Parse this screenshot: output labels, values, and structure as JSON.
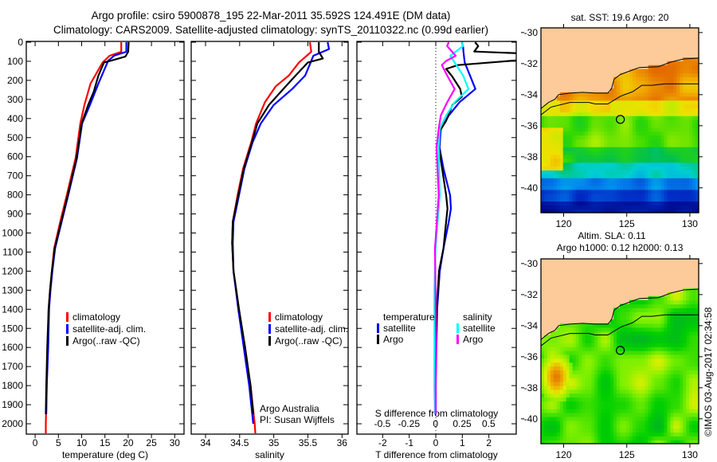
{
  "header": {
    "line1": "Argo profile: csiro 5900878_195 22-Mar-2011 35.592S 124.491E (DM data)",
    "line2": "Climatology: CARS2009. Satellite-adjusted climatology: synTS_20110322.nc (0.99d earlier)"
  },
  "footer_stamp": "©IMOS 03-Aug-2017 02:34:58",
  "colors": {
    "clim": "#ff0000",
    "sat": "#0000ff",
    "argo": "#000000",
    "s_sat": "#00ffff",
    "s_argo": "#ff00ff",
    "land": "#fdca9a"
  },
  "chart_data": [
    {
      "type": "line",
      "id": "temperature",
      "xlabel": "temperature (deg C)",
      "ylabel": "",
      "xlim": [
        -1.9,
        32
      ],
      "ylim": [
        2065,
        -10
      ],
      "xticks": [
        "0",
        "5",
        "10",
        "15",
        "20",
        "25",
        "30"
      ],
      "xtick_values": [
        0,
        5,
        10,
        15,
        20,
        25,
        30
      ],
      "yticks": [
        "0",
        "100",
        "200",
        "300",
        "400",
        "500",
        "600",
        "700",
        "800",
        "900",
        "1000",
        "1100",
        "1200",
        "1300",
        "1400",
        "1500",
        "1600",
        "1700",
        "1800",
        "1900",
        "2000"
      ],
      "legend": {
        "placement": "middle-center",
        "entries": [
          "climatology",
          "satellite-adj. clim.",
          "Argo(..raw -QC)"
        ]
      },
      "series": [
        {
          "name": "climatology",
          "color_key": "clim",
          "points": [
            [
              0,
              18.5
            ],
            [
              50,
              18.5
            ],
            [
              71,
              16.0
            ],
            [
              106,
              14.5
            ],
            [
              217,
              11.9
            ],
            [
              328,
              10.6
            ],
            [
              426,
              9.7
            ],
            [
              607,
              8.7
            ],
            [
              802,
              6.8
            ],
            [
              941,
              5.4
            ],
            [
              1080,
              4.1
            ],
            [
              1200,
              3.6
            ],
            [
              1300,
              3.2
            ],
            [
              1400,
              2.9
            ],
            [
              1600,
              2.7
            ],
            [
              1800,
              2.5
            ],
            [
              2000,
              2.3
            ],
            [
              2050,
              2.3
            ]
          ]
        },
        {
          "name": "satellite-adj. clim.",
          "color_key": "sat",
          "points": [
            [
              0,
              19.6
            ],
            [
              50,
              19.6
            ],
            [
              70,
              17.0
            ],
            [
              97,
              15.7
            ],
            [
              217,
              13.6
            ],
            [
              328,
              11.8
            ],
            [
              426,
              10.1
            ],
            [
              607,
              9.0
            ],
            [
              802,
              7.1
            ],
            [
              941,
              5.7
            ],
            [
              1080,
              4.3
            ],
            [
              1200,
              3.7
            ],
            [
              1300,
              3.3
            ],
            [
              1400,
              3.0
            ],
            [
              1600,
              2.8
            ],
            [
              1800,
              2.5
            ],
            [
              1950,
              2.4
            ]
          ]
        },
        {
          "name": "Argo(..raw -QC)",
          "color_key": "argo",
          "points": [
            [
              0,
              20.1
            ],
            [
              50,
              20.0
            ],
            [
              75,
              19.4
            ],
            [
              95,
              16.5
            ],
            [
              106,
              14.8
            ],
            [
              175,
              13.6
            ],
            [
              259,
              12.6
            ],
            [
              328,
              11.4
            ],
            [
              426,
              10.0
            ],
            [
              607,
              8.9
            ],
            [
              802,
              7.0
            ],
            [
              941,
              5.6
            ],
            [
              1080,
              4.2
            ],
            [
              1200,
              3.6
            ],
            [
              1300,
              3.2
            ],
            [
              1400,
              2.9
            ],
            [
              1600,
              2.6
            ],
            [
              1800,
              2.4
            ],
            [
              1950,
              2.3
            ]
          ]
        }
      ]
    },
    {
      "type": "line",
      "id": "salinity",
      "xlabel": "salinity",
      "xlim": [
        33.79,
        36.09
      ],
      "ylim": [
        2065,
        -10
      ],
      "xticks": [
        "34",
        "34.5",
        "35",
        "35.5",
        "36"
      ],
      "xtick_values": [
        34,
        34.5,
        35,
        35.5,
        36
      ],
      "legend": {
        "placement": "middle-right",
        "entries": [
          "climatology",
          "satellite-adj. clim.",
          "Argo(..raw -QC)"
        ]
      },
      "annotation": [
        "Argo Australia",
        "PI: Susan Wijffels"
      ],
      "series": [
        {
          "name": "climatology",
          "color_key": "clim",
          "points": [
            [
              0,
              35.53
            ],
            [
              50,
              35.55
            ],
            [
              106,
              35.37
            ],
            [
              175,
              35.22
            ],
            [
              231,
              35.03
            ],
            [
              315,
              34.87
            ],
            [
              426,
              34.74
            ],
            [
              524,
              34.67
            ],
            [
              663,
              34.55
            ],
            [
              802,
              34.47
            ],
            [
              941,
              34.4
            ],
            [
              1052,
              34.39
            ],
            [
              1200,
              34.41
            ],
            [
              1400,
              34.49
            ],
            [
              1600,
              34.57
            ],
            [
              1800,
              34.66
            ],
            [
              2000,
              34.72
            ],
            [
              2050,
              34.73
            ]
          ]
        },
        {
          "name": "satellite-adj. clim.",
          "color_key": "sat",
          "points": [
            [
              0,
              35.79
            ],
            [
              36,
              35.81
            ],
            [
              71,
              35.58
            ],
            [
              106,
              35.54
            ],
            [
              175,
              35.46
            ],
            [
              245,
              35.27
            ],
            [
              329,
              35.0
            ],
            [
              426,
              34.81
            ],
            [
              524,
              34.69
            ],
            [
              663,
              34.57
            ],
            [
              802,
              34.49
            ],
            [
              941,
              34.41
            ],
            [
              1052,
              34.4
            ],
            [
              1200,
              34.41
            ],
            [
              1400,
              34.48
            ],
            [
              1600,
              34.56
            ],
            [
              1800,
              34.64
            ],
            [
              2000,
              34.7
            ]
          ]
        },
        {
          "name": "Argo(..raw -QC)",
          "color_key": "argo",
          "points": [
            [
              0,
              35.66
            ],
            [
              50,
              35.66
            ],
            [
              85,
              35.72
            ],
            [
              106,
              35.5
            ],
            [
              175,
              35.32
            ],
            [
              245,
              35.14
            ],
            [
              329,
              34.93
            ],
            [
              426,
              34.76
            ],
            [
              524,
              34.68
            ],
            [
              663,
              34.56
            ],
            [
              802,
              34.48
            ],
            [
              941,
              34.4
            ],
            [
              1052,
              34.39
            ],
            [
              1200,
              34.41
            ],
            [
              1400,
              34.49
            ],
            [
              1600,
              34.58
            ],
            [
              1800,
              34.66
            ],
            [
              1950,
              34.7
            ]
          ]
        }
      ]
    },
    {
      "type": "line",
      "id": "difference",
      "xlabel": "T difference from climatology",
      "xlabel2": "S difference from climatology",
      "xlim": [
        -2.97,
        3.03
      ],
      "xlim_S": [
        -0.74,
        0.76
      ],
      "ylim": [
        2065,
        -10
      ],
      "xticks": [
        "-2",
        "-1",
        "0",
        "1",
        "2"
      ],
      "xtick_values": [
        -2,
        -1,
        0,
        1,
        2
      ],
      "xticks_S": [
        "-0.5",
        "-0.25",
        "0",
        "0.25",
        "0.5"
      ],
      "xtick_values_S": [
        -0.5,
        -0.25,
        0,
        0.25,
        0.5
      ],
      "legend": {
        "placement": "middle",
        "temperature_title": "temperature",
        "salinity_title": "salinity",
        "entries": [
          "satellite",
          "Argo",
          "satellite",
          "Argo"
        ]
      },
      "series": [
        {
          "name": "temperature satellite",
          "color_key": "sat",
          "scale": "T",
          "points": [
            [
              0,
              0.98
            ],
            [
              20,
              1.03
            ],
            [
              49,
              1.04
            ],
            [
              106,
              1.09
            ],
            [
              175,
              1.29
            ],
            [
              245,
              1.49
            ],
            [
              315,
              0.89
            ],
            [
              384,
              0.49
            ],
            [
              454,
              0.19
            ],
            [
              552,
              0.14
            ],
            [
              663,
              0.29
            ],
            [
              802,
              0.54
            ],
            [
              872,
              0.57
            ],
            [
              941,
              0.49
            ],
            [
              1080,
              0.29
            ],
            [
              1200,
              0.15
            ],
            [
              1400,
              0.05
            ],
            [
              1600,
              0.02
            ],
            [
              1800,
              0.0
            ],
            [
              1950,
              0.0
            ]
          ]
        },
        {
          "name": "temperature Argo",
          "color_key": "argo",
          "scale": "T",
          "points": [
            [
              0,
              1.48
            ],
            [
              20,
              1.6
            ],
            [
              49,
              1.45
            ],
            [
              60,
              3.5
            ],
            [
              90,
              3.5
            ],
            [
              120,
              0.84
            ],
            [
              140,
              0.39
            ],
            [
              180,
              0.62
            ],
            [
              245,
              0.92
            ],
            [
              286,
              0.98
            ],
            [
              328,
              0.63
            ],
            [
              412,
              0.39
            ],
            [
              468,
              0.14
            ],
            [
              552,
              0.12
            ],
            [
              663,
              0.24
            ],
            [
              802,
              0.39
            ],
            [
              872,
              0.44
            ],
            [
              1010,
              0.34
            ],
            [
              1080,
              0.29
            ],
            [
              1200,
              0.12
            ],
            [
              1400,
              0.04
            ],
            [
              1600,
              0.0
            ],
            [
              1800,
              -0.02
            ],
            [
              1950,
              -0.02
            ]
          ]
        },
        {
          "name": "salinity satellite",
          "color_key": "s_sat",
          "scale": "S",
          "points": [
            [
              0,
              0.25
            ],
            [
              20,
              0.26
            ],
            [
              71,
              0.14
            ],
            [
              106,
              0.18
            ],
            [
              175,
              0.26
            ],
            [
              245,
              0.31
            ],
            [
              315,
              0.18
            ],
            [
              384,
              0.1
            ],
            [
              454,
              0.04
            ],
            [
              552,
              0.03
            ],
            [
              802,
              0.04
            ],
            [
              1080,
              0.0
            ],
            [
              1300,
              -0.01
            ],
            [
              1600,
              -0.01
            ],
            [
              1800,
              -0.01
            ],
            [
              1950,
              -0.005
            ]
          ]
        },
        {
          "name": "salinity Argo",
          "color_key": "s_argo",
          "scale": "S",
          "points": [
            [
              0,
              0.124
            ],
            [
              20,
              0.11
            ],
            [
              71,
              0.19
            ],
            [
              98,
              0.1
            ],
            [
              120,
              0.06
            ],
            [
              175,
              0.11
            ],
            [
              245,
              0.18
            ],
            [
              315,
              0.11
            ],
            [
              384,
              0.05
            ],
            [
              454,
              0.03
            ],
            [
              552,
              0.01
            ],
            [
              802,
              0.03
            ],
            [
              1080,
              -0.005
            ],
            [
              1300,
              0.0
            ],
            [
              1600,
              0.005
            ],
            [
              1800,
              0.0
            ],
            [
              1950,
              0.0
            ]
          ]
        }
      ]
    },
    {
      "type": "heatmap",
      "id": "sst-map",
      "title": "sat. SST: 19.6 Argo: 20",
      "xticks": [
        "120",
        "125",
        "130"
      ],
      "xtick_values": [
        120,
        125,
        130
      ],
      "yticks": [
        "-30",
        "-32",
        "-34",
        "-36",
        "-38",
        "-40"
      ],
      "ytick_values": [
        -30,
        -32,
        -34,
        -36,
        -38,
        -40
      ],
      "xlim": [
        118.2,
        130.7
      ],
      "ylim": [
        -41.6,
        -29.7
      ],
      "argo_position": [
        124.491,
        -35.592
      ],
      "value_range": [
        13,
        22
      ]
    },
    {
      "type": "heatmap",
      "id": "sla-map",
      "title_line1": "Altim. SLA: 0.11",
      "title_line2": "Argo h1000: 0.12 h2000: 0.13",
      "xticks": [
        "120",
        "125",
        "130"
      ],
      "xtick_values": [
        120,
        125,
        130
      ],
      "yticks": [
        "-30",
        "-32",
        "-34",
        "-36",
        "-38",
        "-40"
      ],
      "ytick_values": [
        -30,
        -32,
        -34,
        -36,
        -38,
        -40
      ],
      "xlim": [
        118.2,
        130.7
      ],
      "ylim": [
        -41.6,
        -29.7
      ],
      "argo_position": [
        124.491,
        -35.592
      ]
    }
  ],
  "map_geo": {
    "coastline": [
      [
        118.2,
        -34.9
      ],
      [
        118.8,
        -34.5
      ],
      [
        119.3,
        -34.3
      ],
      [
        119.6,
        -34.0
      ],
      [
        120.5,
        -33.9
      ],
      [
        121.5,
        -33.85
      ],
      [
        122.5,
        -33.9
      ],
      [
        123.5,
        -33.9
      ],
      [
        123.8,
        -33.6
      ],
      [
        124.0,
        -33.0
      ],
      [
        124.5,
        -32.7
      ],
      [
        125.5,
        -32.4
      ],
      [
        126.0,
        -32.25
      ],
      [
        127.5,
        -32.2
      ],
      [
        128.5,
        -31.9
      ],
      [
        129.5,
        -31.7
      ],
      [
        130.7,
        -31.65
      ]
    ],
    "contour": [
      [
        118.2,
        -35.3
      ],
      [
        119.0,
        -34.8
      ],
      [
        120.5,
        -34.5
      ],
      [
        122.0,
        -34.5
      ],
      [
        122.5,
        -34.6
      ],
      [
        123.5,
        -34.6
      ],
      [
        124.5,
        -34.1
      ],
      [
        125.5,
        -33.8
      ],
      [
        126.2,
        -33.4
      ],
      [
        127.0,
        -33.4
      ],
      [
        128.0,
        -33.3
      ],
      [
        130.7,
        -33.3
      ]
    ]
  }
}
